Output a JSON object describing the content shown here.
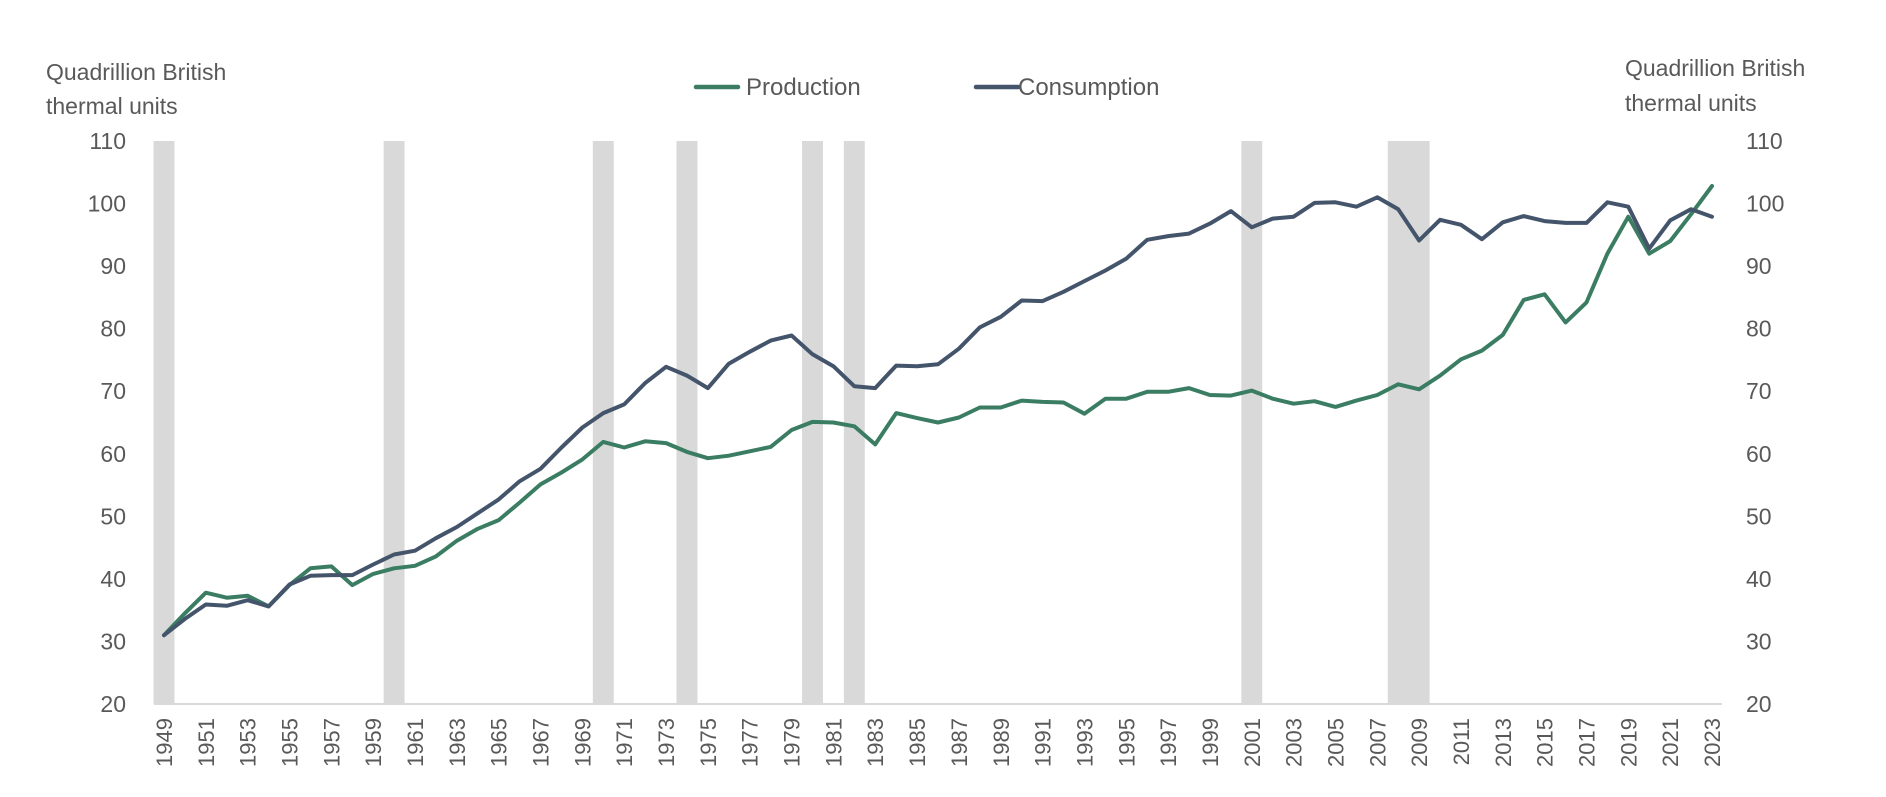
{
  "chart_data": {
    "type": "line",
    "title": "",
    "y_left_label": [
      "Quadrillion British",
      "thermal units"
    ],
    "y_right_label": [
      "Quadrillion British",
      "thermal units"
    ],
    "ylim": [
      20,
      110
    ],
    "yticks": [
      20,
      30,
      40,
      50,
      60,
      70,
      80,
      90,
      100,
      110
    ],
    "xlim": [
      1949,
      2023
    ],
    "xtick_labels": [
      "1949",
      "1951",
      "1953",
      "1955",
      "1957",
      "1959",
      "1961",
      "1963",
      "1965",
      "1967",
      "1969",
      "1971",
      "1973",
      "1975",
      "1977",
      "1979",
      "1981",
      "1983",
      "1985",
      "1987",
      "1989",
      "1991",
      "1993",
      "1995",
      "1997",
      "1999",
      "2001",
      "2003",
      "2005",
      "2007",
      "2009",
      "2011",
      "2013",
      "2015",
      "2017",
      "2019",
      "2021",
      "2023"
    ],
    "grid": false,
    "legend_position": "top-center",
    "recession_shading": [
      {
        "start": 1948.5,
        "end": 1949.5
      },
      {
        "start": 1959.5,
        "end": 1960.5
      },
      {
        "start": 1969.5,
        "end": 1970.5
      },
      {
        "start": 1973.5,
        "end": 1974.5
      },
      {
        "start": 1979.5,
        "end": 1980.5
      },
      {
        "start": 1981.5,
        "end": 1982.5
      },
      {
        "start": 2000.5,
        "end": 2001.5
      },
      {
        "start": 2007.5,
        "end": 2009.5
      }
    ],
    "x": [
      1949,
      1950,
      1951,
      1952,
      1953,
      1954,
      1955,
      1956,
      1957,
      1958,
      1959,
      1960,
      1961,
      1962,
      1963,
      1964,
      1965,
      1966,
      1967,
      1968,
      1969,
      1970,
      1971,
      1972,
      1973,
      1974,
      1975,
      1976,
      1977,
      1978,
      1979,
      1980,
      1981,
      1982,
      1983,
      1984,
      1985,
      1986,
      1987,
      1988,
      1989,
      1990,
      1991,
      1992,
      1993,
      1994,
      1995,
      1996,
      1997,
      1998,
      1999,
      2000,
      2001,
      2002,
      2003,
      2004,
      2005,
      2006,
      2007,
      2008,
      2009,
      2010,
      2011,
      2012,
      2013,
      2014,
      2015,
      2016,
      2017,
      2018,
      2019,
      2020,
      2021,
      2022,
      2023
    ],
    "series": [
      {
        "name": "Production",
        "color": "#3a7d62",
        "values": [
          31.0,
          34.5,
          37.8,
          37.0,
          37.3,
          35.6,
          39.0,
          41.7,
          42.0,
          39.0,
          40.8,
          41.7,
          42.1,
          43.6,
          46.1,
          48.0,
          49.4,
          52.2,
          55.1,
          57.0,
          59.1,
          61.9,
          61.0,
          62.0,
          61.7,
          60.3,
          59.3,
          59.7,
          60.4,
          61.1,
          63.8,
          65.1,
          65.0,
          64.4,
          61.5,
          66.5,
          65.7,
          65.0,
          65.8,
          67.4,
          67.4,
          68.5,
          68.3,
          68.2,
          66.4,
          68.8,
          68.8,
          69.9,
          69.9,
          70.5,
          69.4,
          69.3,
          70.1,
          68.8,
          68.0,
          68.4,
          67.5,
          68.5,
          69.4,
          71.1,
          70.3,
          72.5,
          75.1,
          76.5,
          79.0,
          84.6,
          85.5,
          81.0,
          84.2,
          92.0,
          97.9,
          92.0,
          94.0,
          98.3,
          102.8
        ]
      },
      {
        "name": "Consumption",
        "color": "#44546a",
        "values": [
          31.0,
          33.6,
          35.9,
          35.7,
          36.6,
          35.6,
          39.1,
          40.5,
          40.6,
          40.6,
          42.3,
          43.9,
          44.5,
          46.5,
          48.3,
          50.5,
          52.7,
          55.6,
          57.6,
          61.0,
          64.2,
          66.5,
          67.9,
          71.3,
          73.9,
          72.5,
          70.5,
          74.4,
          76.3,
          78.1,
          78.9,
          75.9,
          74.0,
          70.8,
          70.5,
          74.1,
          74.0,
          74.3,
          76.8,
          80.2,
          81.9,
          84.5,
          84.4,
          85.9,
          87.6,
          89.3,
          91.2,
          94.2,
          94.8,
          95.2,
          96.8,
          98.8,
          96.2,
          97.6,
          97.9,
          100.1,
          100.2,
          99.5,
          101.0,
          99.1,
          94.1,
          97.4,
          96.6,
          94.3,
          97.0,
          98.0,
          97.2,
          96.9,
          96.9,
          100.2,
          99.5,
          92.8,
          97.3,
          99.1,
          97.9
        ]
      }
    ]
  }
}
